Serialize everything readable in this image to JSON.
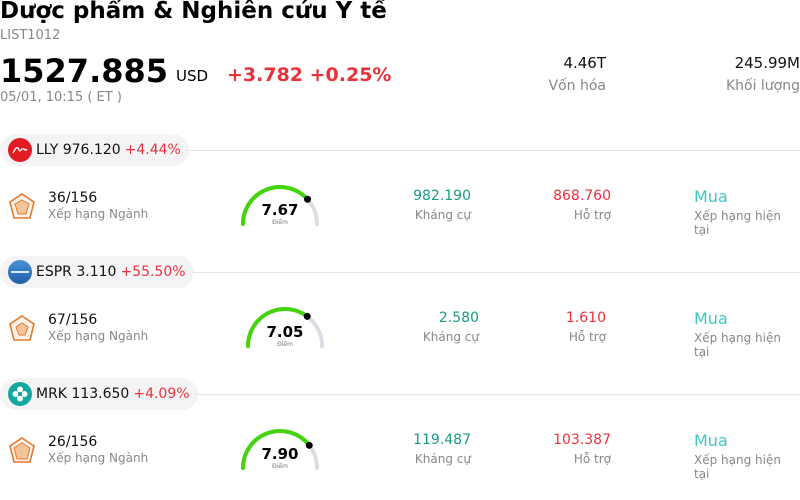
{
  "header": {
    "title": "Dược phẩm & Nghiên cứu Y tế",
    "code": "LIST1012",
    "price": "1527.885",
    "currency": "USD",
    "change": "+3.782 +0.25%",
    "timestamp": "05/01, 10:15  ( ET )",
    "market_cap_value": "4.46T",
    "market_cap_label": "Vốn hóa",
    "volume_value": "245.99M",
    "volume_label": "Khối lượng"
  },
  "labels": {
    "rank": "Xếp hạng Ngành",
    "score": "Điểm",
    "resistance": "Kháng cự",
    "support": "Hỗ trợ",
    "rating": "Xếp hạng hiện tại"
  },
  "stocks": [
    {
      "ticker_price": "LLY 976.120",
      "change_pct": "+4.44%",
      "logo_icon": "lilly-logo-icon",
      "rank": "36/156",
      "score": "7.67",
      "score_value": 7.67,
      "resistance": "982.190",
      "support": "868.760",
      "rating": "Mua"
    },
    {
      "ticker_price": "ESPR 3.110",
      "change_pct": "+55.50%",
      "logo_icon": "esperion-logo-icon",
      "rank": "67/156",
      "score": "7.05",
      "score_value": 7.05,
      "resistance": "2.580",
      "support": "1.610",
      "rating": "Mua"
    },
    {
      "ticker_price": "MRK 113.650",
      "change_pct": "+4.09%",
      "logo_icon": "merck-logo-icon",
      "rank": "26/156",
      "score": "7.90",
      "score_value": 7.9,
      "resistance": "119.487",
      "support": "103.387",
      "rating": "Mua"
    }
  ],
  "colors": {
    "up": "#e8323c",
    "resistance": "#1a9a83",
    "rating": "#3ec7c0",
    "gauge_fill": "#44d40a",
    "gauge_track": "#dcdce4"
  }
}
